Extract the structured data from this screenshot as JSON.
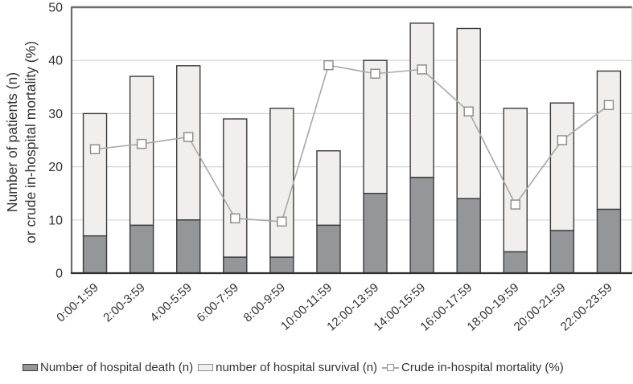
{
  "figure": {
    "y_axis_title_line1": "Number of patients (n)",
    "y_axis_title_line2": "or crude in-hospital mortality (%)"
  },
  "chart_data": {
    "type": "bar",
    "subtype": "stacked-bars-with-line-overlay",
    "categories": [
      "0:00-1:59",
      "2:00-3:59",
      "4:00-5:59",
      "6:00-7:59",
      "8:00-9:59",
      "10:00-11:59",
      "12:00-13:59",
      "14:00-15:59",
      "16:00-17:59",
      "18:00-19:59",
      "20:00-21:59",
      "22:00-23:59"
    ],
    "series": [
      {
        "name": "Number of hospital death (n)",
        "type": "bar",
        "stacked": true,
        "values": [
          7,
          9,
          10,
          3,
          3,
          9,
          15,
          18,
          14,
          4,
          8,
          12
        ],
        "color": "#949699"
      },
      {
        "name": "number of hospital survival (n)",
        "type": "bar",
        "stacked": true,
        "values": [
          23,
          28,
          29,
          26,
          28,
          14,
          25,
          29,
          32,
          27,
          24,
          26
        ],
        "color": "#f0efed"
      },
      {
        "name": "Crude in-hospital mortality (%)",
        "type": "line",
        "marker": "open-square",
        "values": [
          23.3,
          24.3,
          25.6,
          10.3,
          9.7,
          39.1,
          37.5,
          38.3,
          30.4,
          12.9,
          25.0,
          31.6
        ],
        "color": "#a8a8a8"
      }
    ],
    "bar_totals": [
      30,
      37,
      39,
      29,
      31,
      23,
      40,
      47,
      46,
      31,
      32,
      38
    ],
    "ylabel": "Number of patients (n) or crude in-hospital mortality (%)",
    "xlabel": "",
    "ylim": [
      0,
      50
    ],
    "yticks": [
      0,
      10,
      20,
      30,
      40,
      50
    ],
    "grid": true,
    "legend_position": "bottom"
  },
  "legend": {
    "items": [
      {
        "label": "Number of hospital death (n)",
        "swatch": "bar-dark"
      },
      {
        "label": "number of hospital survival (n)",
        "swatch": "bar-light"
      },
      {
        "label": "Crude in-hospital mortality (%)",
        "swatch": "line-marker"
      }
    ]
  },
  "colors": {
    "death_bar": "#949699",
    "survival_bar": "#f0efed",
    "bar_border": "#3a3a3c",
    "line": "#a8a8a8",
    "marker_fill": "#ffffff",
    "marker_border": "#8f8f8f",
    "gridline": "#d4d4d4",
    "top_left_border": "#6e6e6e",
    "bottom_axis": "#2f2f2f",
    "right_border": "#c2c2c2",
    "text": "#333333"
  }
}
